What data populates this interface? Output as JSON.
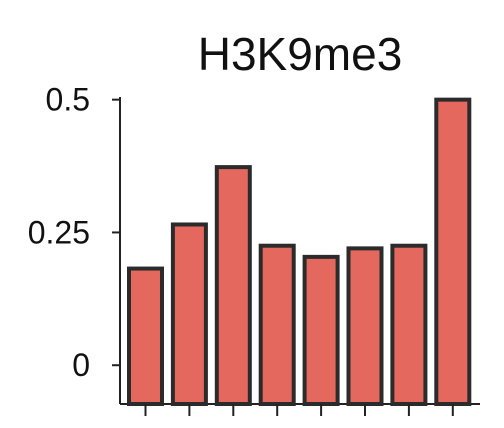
{
  "chart_data": {
    "type": "bar",
    "title": "H3K9me3",
    "xlabel": "",
    "ylabel": "",
    "categories": [
      "",
      "",
      "",
      "",
      "",
      "",
      "",
      ""
    ],
    "values": [
      0.182,
      0.265,
      0.373,
      0.225,
      0.204,
      0.22,
      0.225,
      0.5
    ],
    "ylim": [
      -0.073,
      0.505
    ],
    "yticks": [
      0.5,
      0.25,
      0
    ],
    "ytick_labels": [
      "0.5",
      "0.25",
      "0"
    ],
    "grid": false,
    "legend": "none",
    "bar_color": "#e5685f",
    "bar_edge_color": "#2b2b2b"
  }
}
